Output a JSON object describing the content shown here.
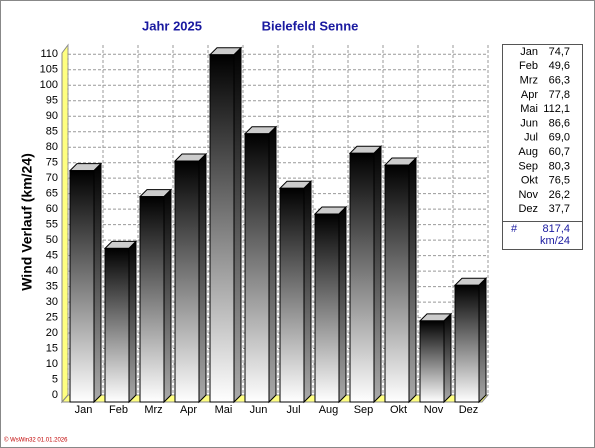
{
  "chart_data": {
    "type": "bar",
    "title": "Jahr  2025",
    "subtitle": "Bielefeld Senne",
    "y_label": "Wind Verlauf  (km/24)",
    "categories": [
      "Jan",
      "Feb",
      "Mrz",
      "Apr",
      "Mai",
      "Jun",
      "Jul",
      "Aug",
      "Sep",
      "Okt",
      "Nov",
      "Dez"
    ],
    "values": [
      74.7,
      49.6,
      66.3,
      77.8,
      112.1,
      86.6,
      69.0,
      60.7,
      80.3,
      76.5,
      26.2,
      37.7
    ],
    "value_labels": [
      "74,7",
      "49,6",
      "66,3",
      "77,8",
      "112,1",
      "86,6",
      "69,0",
      "60,7",
      "80,3",
      "76,5",
      "26,2",
      "37,7"
    ],
    "ylim": [
      0,
      113
    ],
    "yticks": [
      0,
      5,
      10,
      15,
      20,
      25,
      30,
      35,
      40,
      45,
      50,
      55,
      60,
      65,
      70,
      75,
      80,
      85,
      90,
      95,
      100,
      105,
      110
    ],
    "grid": true,
    "total_symbol": "#",
    "total_label": "817,4",
    "unit": "km/24",
    "footer": "© WsWin32  01.01.2026"
  }
}
